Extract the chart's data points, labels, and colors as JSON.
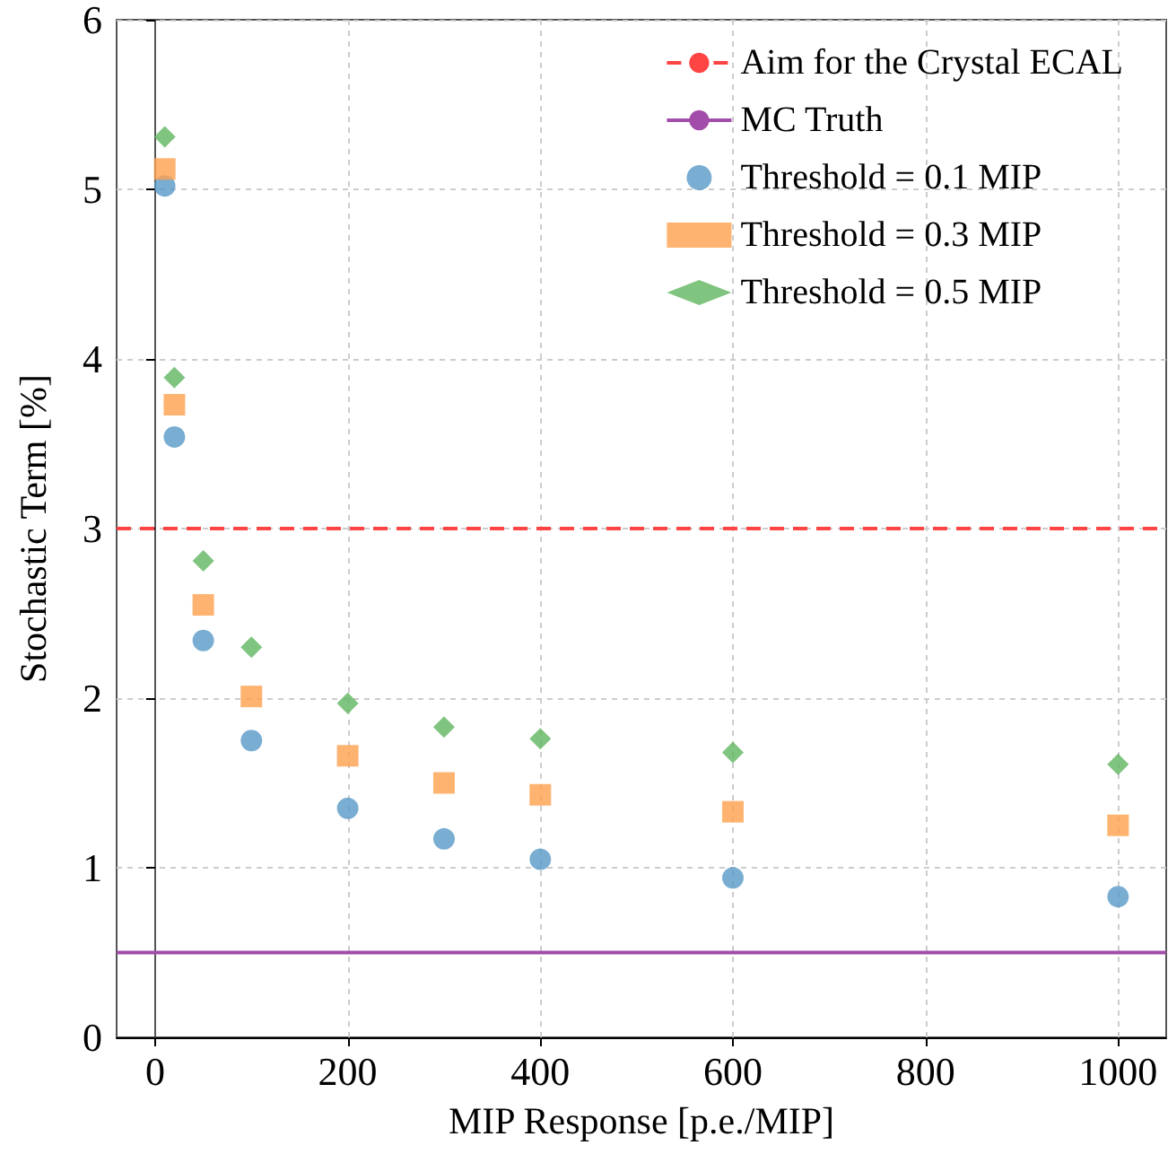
{
  "chart_data": {
    "type": "scatter",
    "xlabel": "MIP Response [p.e./MIP]",
    "ylabel": "Stochastic Term [%]",
    "x": [
      10,
      20,
      50,
      100,
      200,
      300,
      400,
      600,
      1000
    ],
    "series": [
      {
        "name": "Threshold = 0.1 MIP",
        "color": "#5799c7",
        "marker": "circle",
        "values": [
          5.02,
          3.54,
          2.34,
          1.75,
          1.35,
          1.17,
          1.05,
          0.94,
          0.83
        ]
      },
      {
        "name": "Threshold = 0.3 MIP",
        "color": "#ffa04e",
        "marker": "square",
        "values": [
          5.12,
          3.73,
          2.55,
          2.01,
          1.66,
          1.5,
          1.43,
          1.33,
          1.25
        ]
      },
      {
        "name": "Threshold = 0.5 MIP",
        "color": "#5fb55f",
        "marker": "diamond",
        "values": [
          5.31,
          3.89,
          2.81,
          2.3,
          1.97,
          1.83,
          1.76,
          1.68,
          1.61
        ]
      }
    ],
    "ref_lines": [
      {
        "axis": "y",
        "value": 3,
        "label": "Aim for the Crystal ECAL",
        "color": "#ff4444",
        "line_style": "dashed"
      },
      {
        "axis": "y",
        "value": 0.5,
        "label": "MC Truth",
        "color": "#a24da9",
        "line_style": "solid"
      }
    ],
    "xlim": [
      -40,
      1050
    ],
    "xticks": [
      0,
      200,
      400,
      600,
      800,
      1000
    ],
    "ylim": [
      0,
      6
    ],
    "yticks": [
      0,
      1,
      2,
      3,
      4,
      5,
      6
    ],
    "grid": true,
    "legend": "top right"
  }
}
